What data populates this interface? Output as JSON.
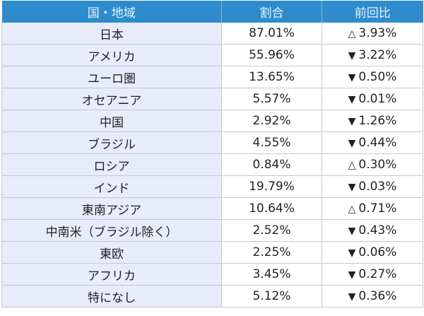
{
  "table": {
    "headers": [
      "国・地域",
      "割合",
      "前回比"
    ],
    "header_color": "#2e8ccc",
    "region_bg_color": "#e8ebfa",
    "rows": [
      {
        "region": "日本",
        "share": "87.01%",
        "change_mark": "△",
        "change": "3.93%"
      },
      {
        "region": "アメリカ",
        "share": "55.96%",
        "change_mark": "▼",
        "change": "3.22%"
      },
      {
        "region": "ユーロ圏",
        "share": "13.65%",
        "change_mark": "▼",
        "change": "0.50%"
      },
      {
        "region": "オセアニア",
        "share": "5.57%",
        "change_mark": "▼",
        "change": "0.01%"
      },
      {
        "region": "中国",
        "share": "2.92%",
        "change_mark": "▼",
        "change": "1.26%"
      },
      {
        "region": "ブラジル",
        "share": "4.55%",
        "change_mark": "▼",
        "change": "0.44%"
      },
      {
        "region": "ロシア",
        "share": "0.84%",
        "change_mark": "△",
        "change": "0.30%"
      },
      {
        "region": "インド",
        "share": "19.79%",
        "change_mark": "▼",
        "change": "0.03%"
      },
      {
        "region": "東南アジア",
        "share": "10.64%",
        "change_mark": "△",
        "change": "0.71%"
      },
      {
        "region": "中南米（ブラジル除く）",
        "share": "2.52%",
        "change_mark": "▼",
        "change": "0.43%"
      },
      {
        "region": "東欧",
        "share": "2.25%",
        "change_mark": "▼",
        "change": "0.06%"
      },
      {
        "region": "アフリカ",
        "share": "3.45%",
        "change_mark": "▼",
        "change": "0.27%"
      },
      {
        "region": "特になし",
        "share": "5.12%",
        "change_mark": "▼",
        "change": "0.36%"
      }
    ]
  }
}
